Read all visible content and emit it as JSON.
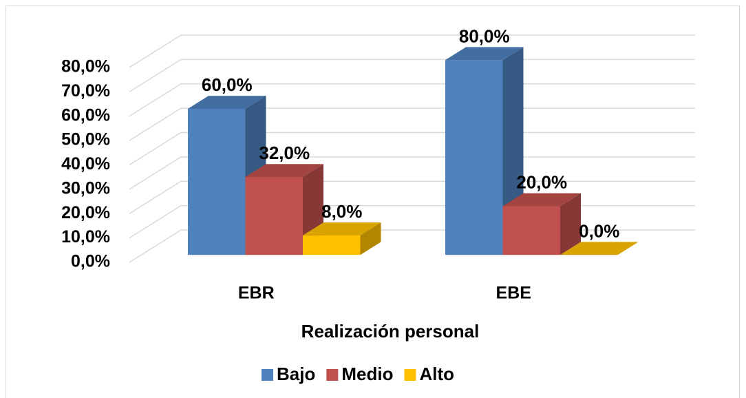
{
  "chart_data": {
    "type": "bar3d",
    "x_label": "Realización personal",
    "categories": [
      "EBR",
      "EBE"
    ],
    "series": [
      {
        "name": "Bajo",
        "color": "#4f81bd",
        "values": [
          60,
          80
        ],
        "value_labels": [
          "60,0%",
          "80,0%"
        ]
      },
      {
        "name": "Medio",
        "color": "#c0504d",
        "values": [
          32,
          20
        ],
        "value_labels": [
          "32,0%",
          "20,0%"
        ]
      },
      {
        "name": "Alto",
        "color": "#ffc000",
        "values": [
          8,
          0
        ],
        "value_labels": [
          "8,0%",
          "0,0%"
        ]
      }
    ],
    "ylim": [
      0,
      80
    ],
    "yticks": [
      {
        "value": 0,
        "label": "0,0%"
      },
      {
        "value": 10,
        "label": "10,0%"
      },
      {
        "value": 20,
        "label": "20,0%"
      },
      {
        "value": 30,
        "label": "30,0%"
      },
      {
        "value": 40,
        "label": "40,0%"
      },
      {
        "value": 50,
        "label": "50,0%"
      },
      {
        "value": 60,
        "label": "60,0%"
      },
      {
        "value": 70,
        "label": "70,0%"
      },
      {
        "value": 80,
        "label": "80,0%"
      }
    ],
    "grid": true,
    "legend": "bottom"
  }
}
